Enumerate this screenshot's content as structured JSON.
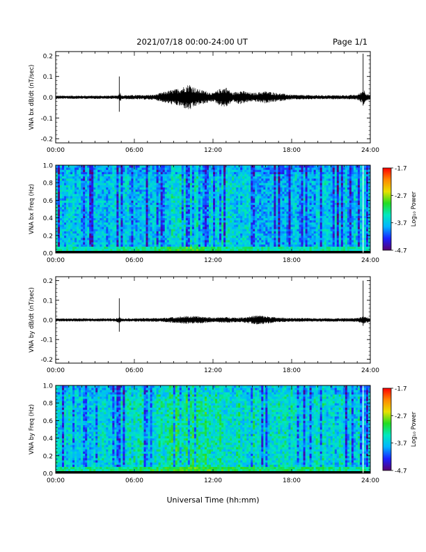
{
  "header": {
    "title": "2021/07/18  00:00-24:00 UT",
    "page": "Page 1/1"
  },
  "colors": {
    "trace": "#000000",
    "colormap": [
      "#5a0070",
      "#1a22ff",
      "#00b4ff",
      "#00e8c0",
      "#22dd22",
      "#e8e000",
      "#ff8800",
      "#ff0000"
    ]
  },
  "chart_data": [
    {
      "type": "line",
      "ylabel": "VNA bx dB/dt (nT/sec)",
      "xlim": [
        0,
        24
      ],
      "ylim": [
        -0.22,
        0.22
      ],
      "yticks": [
        "0.2",
        "0.1",
        "0.0",
        "-0.1",
        "-0.2"
      ],
      "ytick_values": [
        0.2,
        0.1,
        0.0,
        -0.1,
        -0.2
      ],
      "xticks": [
        "00:00",
        "06:00",
        "12:00",
        "18:00",
        "24:00"
      ],
      "xtick_values": [
        0,
        6,
        12,
        18,
        24
      ],
      "envelope": {
        "hours": [
          0,
          4.6,
          4.8,
          4.9,
          5.0,
          7.5,
          8.5,
          9.5,
          10.2,
          10.8,
          11.5,
          12.0,
          12.5,
          13.0,
          13.5,
          14.0,
          15.0,
          16.0,
          17.0,
          18.0,
          20.0,
          22.0,
          23.0,
          23.3,
          23.5,
          23.7,
          24.0
        ],
        "amplitude": [
          0.008,
          0.008,
          0.012,
          0.03,
          0.01,
          0.012,
          0.03,
          0.045,
          0.065,
          0.04,
          0.03,
          0.02,
          0.04,
          0.05,
          0.02,
          0.035,
          0.02,
          0.03,
          0.02,
          0.012,
          0.01,
          0.01,
          0.012,
          0.025,
          0.04,
          0.02,
          0.01
        ]
      },
      "spikes": [
        {
          "hour": 4.85,
          "max": 0.1,
          "min": -0.07
        },
        {
          "hour": 23.45,
          "max": 0.21,
          "min": -0.04
        }
      ]
    },
    {
      "type": "heatmap",
      "ylabel": "VNA bx Freq (Hz)",
      "xlim": [
        0,
        24
      ],
      "ylim": [
        0,
        1.0
      ],
      "yticks": [
        "1.0",
        "0.8",
        "0.6",
        "0.4",
        "0.2",
        "0.0"
      ],
      "ytick_values": [
        1.0,
        0.8,
        0.6,
        0.4,
        0.2,
        0.0
      ],
      "xticks": [
        "00:00",
        "06:00",
        "12:00",
        "18:00",
        "24:00"
      ],
      "xtick_values": [
        0,
        6,
        12,
        18,
        24
      ],
      "colorbar": {
        "label": "Log₁₀ Power",
        "ticks": [
          "-1.7",
          "-2.7",
          "-3.7",
          "-4.7"
        ],
        "tick_values": [
          -1.7,
          -2.7,
          -3.7,
          -4.7
        ],
        "range": [
          -4.7,
          -1.7
        ]
      },
      "power": {
        "hours": [
          0,
          4,
          6,
          8,
          9,
          10,
          11,
          12,
          14,
          16,
          18,
          20,
          22,
          24
        ],
        "background": [
          -3.75,
          -3.75,
          -3.7,
          -3.65,
          -3.55,
          -3.5,
          -3.55,
          -3.6,
          -3.65,
          -3.7,
          -3.75,
          -3.75,
          -3.75,
          -3.75
        ],
        "low_freq_band": [
          -3.1,
          -3.0,
          -2.9,
          -2.7,
          -2.5,
          -2.4,
          -2.6,
          -2.8,
          -2.9,
          -3.0,
          -3.0,
          -3.0,
          -3.0,
          -3.1
        ]
      },
      "white_line_hour": 23.45
    },
    {
      "type": "line",
      "ylabel": "VNA by dB/dt (nT/sec)",
      "xlim": [
        0,
        24
      ],
      "ylim": [
        -0.22,
        0.22
      ],
      "yticks": [
        "0.2",
        "0.1",
        "0.0",
        "-0.1",
        "-0.2"
      ],
      "ytick_values": [
        0.2,
        0.1,
        0.0,
        -0.1,
        -0.2
      ],
      "xticks": [
        "00:00",
        "06:00",
        "12:00",
        "18:00",
        "24:00"
      ],
      "xtick_values": [
        0,
        6,
        12,
        18,
        24
      ],
      "envelope": {
        "hours": [
          0,
          4.6,
          4.9,
          5.0,
          8.0,
          9.0,
          10.0,
          11.0,
          12.0,
          13.0,
          14.0,
          15.0,
          15.5,
          16.0,
          17.0,
          18.0,
          20.0,
          22.0,
          23.0,
          23.5,
          24.0
        ],
        "amplitude": [
          0.008,
          0.008,
          0.02,
          0.008,
          0.01,
          0.015,
          0.02,
          0.018,
          0.012,
          0.015,
          0.012,
          0.02,
          0.025,
          0.02,
          0.012,
          0.01,
          0.009,
          0.009,
          0.01,
          0.02,
          0.01
        ]
      },
      "spikes": [
        {
          "hour": 4.85,
          "max": 0.11,
          "min": -0.06
        },
        {
          "hour": 23.45,
          "max": 0.2,
          "min": -0.03
        }
      ]
    },
    {
      "type": "heatmap",
      "ylabel": "VNA by Freq (Hz)",
      "xlim": [
        0,
        24
      ],
      "ylim": [
        0,
        1.0
      ],
      "yticks": [
        "1.0",
        "0.8",
        "0.6",
        "0.4",
        "0.2",
        "0.0"
      ],
      "ytick_values": [
        1.0,
        0.8,
        0.6,
        0.4,
        0.2,
        0.0
      ],
      "xticks": [
        "00:00",
        "06:00",
        "12:00",
        "18:00",
        "24:00"
      ],
      "xtick_values": [
        0,
        6,
        12,
        18,
        24
      ],
      "xlabel": "Universal Time (hh:mm)",
      "colorbar": {
        "label": "Log₁₀ Power",
        "ticks": [
          "-1.7",
          "-2.7",
          "-3.7",
          "-4.7"
        ],
        "tick_values": [
          -1.7,
          -2.7,
          -3.7,
          -4.7
        ],
        "range": [
          -4.7,
          -1.7
        ]
      },
      "power": {
        "hours": [
          0,
          4,
          6,
          8,
          9,
          10,
          11,
          12,
          14,
          16,
          18,
          20,
          22,
          24
        ],
        "background": [
          -3.6,
          -3.6,
          -3.5,
          -3.4,
          -3.3,
          -3.25,
          -3.3,
          -3.35,
          -3.45,
          -3.5,
          -3.55,
          -3.55,
          -3.6,
          -3.6
        ],
        "low_freq_band": [
          -3.1,
          -3.0,
          -2.9,
          -2.8,
          -2.7,
          -2.6,
          -2.6,
          -2.7,
          -2.8,
          -2.8,
          -2.9,
          -2.9,
          -3.0,
          -3.0
        ]
      },
      "white_line_hour": 23.45
    }
  ]
}
